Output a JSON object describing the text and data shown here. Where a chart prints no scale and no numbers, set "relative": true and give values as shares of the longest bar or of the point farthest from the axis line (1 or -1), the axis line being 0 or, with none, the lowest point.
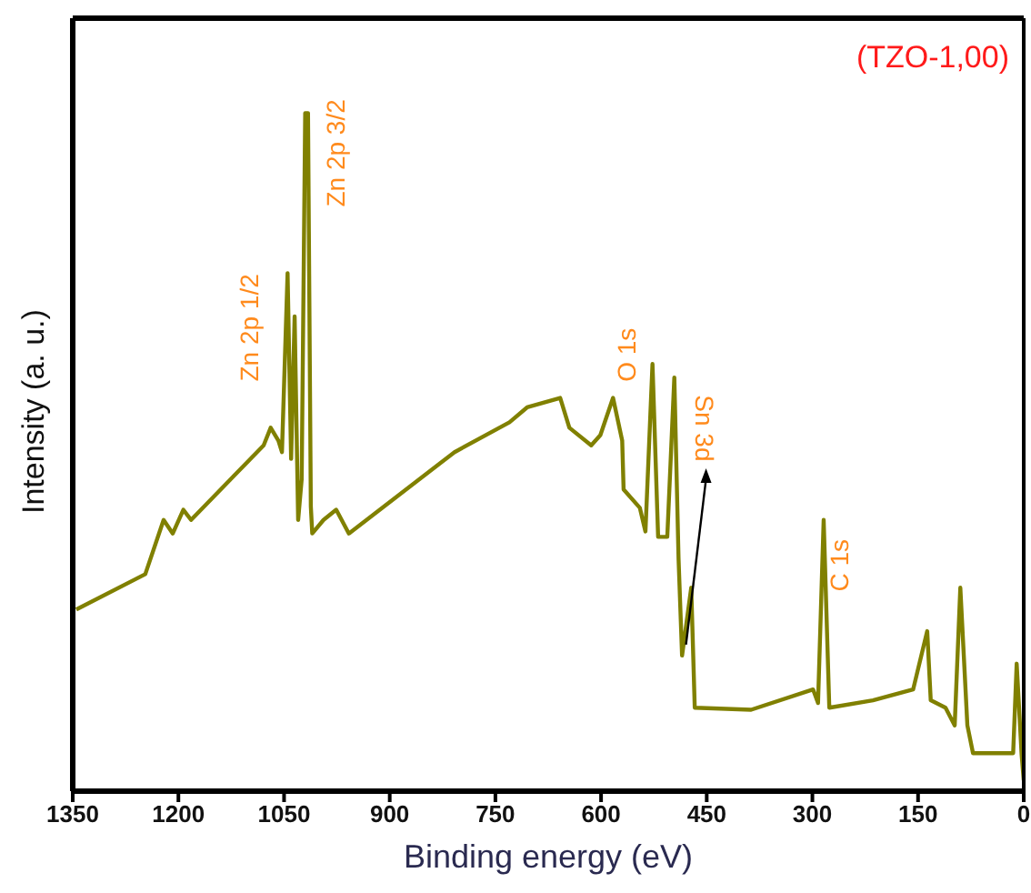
{
  "chart_data": {
    "type": "line",
    "relative": true,
    "xlabel": "Binding energy (eV)",
    "ylabel": "Intensity (a. u.)",
    "xlim": [
      1350,
      0
    ],
    "xticks": [
      1350,
      1200,
      1050,
      900,
      750,
      600,
      450,
      300,
      150,
      0
    ],
    "marker": "none",
    "line_style": "solid",
    "series": [
      {
        "color": "#808000",
        "x": [
          1345,
          1247,
          1221,
          1208,
          1193,
          1182,
          1079,
          1069,
          1058,
          1053,
          1045,
          1040,
          1035,
          1030,
          1025,
          1020,
          1016,
          1012,
          1010,
          994,
          976,
          958,
          808,
          730,
          705,
          658,
          645,
          614,
          601,
          583,
          570,
          568,
          545,
          537,
          527,
          519,
          506,
          496,
          490,
          485,
          472,
          467,
          387,
          299,
          292,
          284,
          276,
          214,
          157,
          137,
          132,
          111,
          98,
          90,
          80,
          72,
          15,
          10,
          3,
          0
        ],
        "values": [
          0.268,
          0.32,
          0.4,
          0.38,
          0.415,
          0.4,
          0.51,
          0.536,
          0.517,
          0.5,
          0.764,
          0.49,
          0.7,
          0.4,
          0.46,
          1.0,
          1.0,
          0.42,
          0.38,
          0.4,
          0.415,
          0.38,
          0.5,
          0.544,
          0.566,
          0.58,
          0.536,
          0.51,
          0.525,
          0.58,
          0.517,
          0.445,
          0.418,
          0.383,
          0.63,
          0.375,
          0.375,
          0.61,
          0.343,
          0.2,
          0.3,
          0.123,
          0.12,
          0.15,
          0.13,
          0.4,
          0.123,
          0.134,
          0.15,
          0.236,
          0.134,
          0.123,
          0.097,
          0.3,
          0.097,
          0.056,
          0.056,
          0.188,
          0.054,
          0.016
        ]
      }
    ],
    "annotations": [
      "(TZO-1,00)",
      {
        "text": "Zn 2p 1/2",
        "x": 1045,
        "y": 0.764
      },
      {
        "text": "Zn 2p 3/2",
        "x": 1020,
        "y": 1.0
      },
      {
        "text": "O 1s",
        "x": 527,
        "y": 0.63
      },
      {
        "text": "Sn 3d",
        "x": 482,
        "y": 0.2
      },
      {
        "text": "C 1s",
        "x": 284,
        "y": 0.4
      }
    ]
  }
}
